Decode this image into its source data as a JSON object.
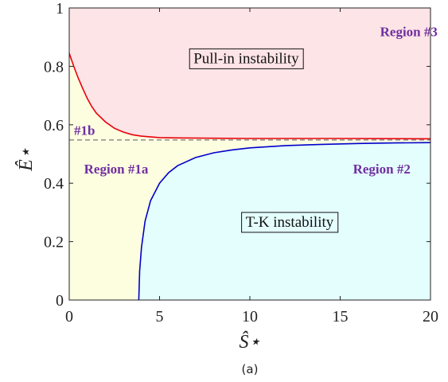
{
  "chart_data": {
    "type": "line",
    "caption": "(a)",
    "xlabel": "Ŝ⋆",
    "ylabel": "Ê⋆",
    "xlim": [
      0,
      20
    ],
    "ylim": [
      0,
      1
    ],
    "x_ticks": [
      0,
      5,
      10,
      15,
      20
    ],
    "y_ticks": [
      0,
      0.2,
      0.4,
      0.6,
      0.8,
      1
    ],
    "y_tick_labels": [
      "0",
      "0.2",
      "0.4",
      "0.6",
      "0.8",
      "1"
    ],
    "grid": false,
    "reference_line": {
      "y": 0.548,
      "style": "dashed"
    },
    "series": [
      {
        "color": "#e8000b",
        "x": [
          0,
          0.25,
          0.5,
          0.75,
          1,
          1.25,
          1.5,
          2,
          2.5,
          3,
          3.5,
          4,
          5,
          6,
          8,
          10,
          12,
          15,
          20
        ],
        "y": [
          0.845,
          0.8,
          0.76,
          0.724,
          0.69,
          0.662,
          0.64,
          0.61,
          0.588,
          0.575,
          0.566,
          0.561,
          0.556,
          0.555,
          0.554,
          0.553,
          0.553,
          0.553,
          0.552
        ]
      },
      {
        "color": "#0000cc",
        "x": [
          3.85,
          3.9,
          4.0,
          4.2,
          4.5,
          5.0,
          5.5,
          6,
          7,
          8,
          9,
          10,
          12,
          14,
          16,
          18,
          20
        ],
        "y": [
          0.0,
          0.1,
          0.18,
          0.27,
          0.34,
          0.4,
          0.436,
          0.46,
          0.488,
          0.504,
          0.514,
          0.521,
          0.529,
          0.533,
          0.536,
          0.538,
          0.539
        ]
      }
    ],
    "regions": [
      {
        "label": "Region #3",
        "color": "#fde4e7"
      },
      {
        "label": "Region #1a",
        "color": "#fdfde0"
      },
      {
        "label": "Region #2",
        "color": "#e4fdfd"
      },
      {
        "label": "#1b",
        "color": "#fdfde0"
      }
    ],
    "annotations": [
      {
        "text": "Pull-in instability",
        "x": 9.8,
        "y": 0.83,
        "boxed": true
      },
      {
        "text": "T-K instability",
        "x": 12.2,
        "y": 0.27,
        "boxed": true
      },
      {
        "text": "Region #3",
        "x": 18.8,
        "y": 0.92
      },
      {
        "text": "Region #1a",
        "x": 2.6,
        "y": 0.45
      },
      {
        "text": "Region #2",
        "x": 17.3,
        "y": 0.45
      },
      {
        "text": "#1b",
        "x": 0.85,
        "y": 0.582
      }
    ]
  }
}
